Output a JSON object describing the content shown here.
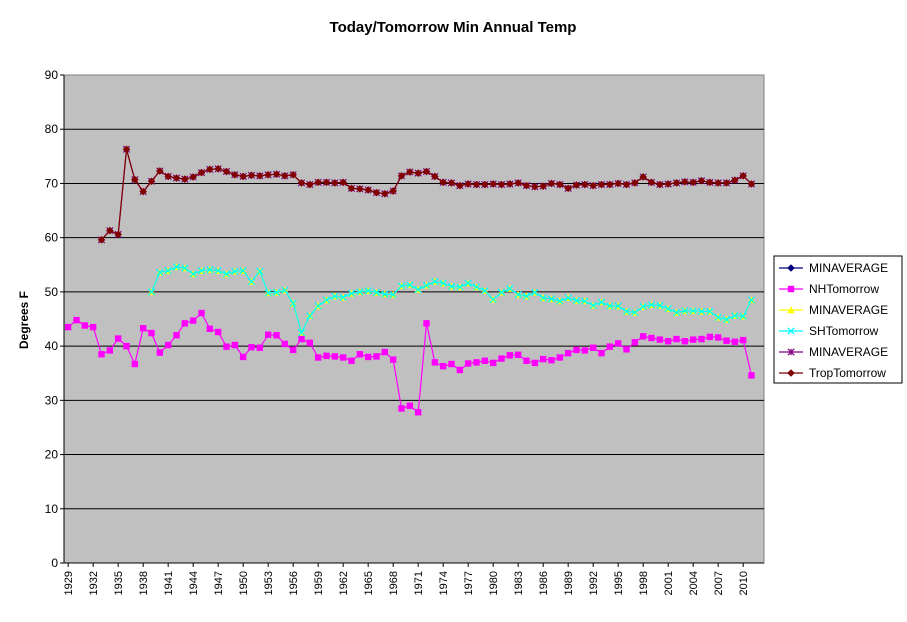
{
  "chart_data": {
    "type": "line",
    "title": "Today/Tomorrow Min Annual Temp",
    "xlabel": "",
    "ylabel": "Degrees F",
    "ylim": [
      0,
      90
    ],
    "y_ticks": [
      0,
      10,
      20,
      30,
      40,
      50,
      60,
      70,
      80,
      90
    ],
    "x_range": [
      1929,
      2012
    ],
    "x_tick_labels": [
      1929,
      1932,
      1935,
      1938,
      1941,
      1944,
      1947,
      1950,
      1953,
      1956,
      1959,
      1962,
      1965,
      1968,
      1971,
      1974,
      1977,
      1980,
      1983,
      1986,
      1989,
      1992,
      1995,
      1998,
      2001,
      2004,
      2007,
      2010
    ],
    "grid": "horizontal",
    "legend_position": "right",
    "plot_background": "#c0c0c0",
    "series": [
      {
        "name": "MINAVERAGE",
        "color": "#000080",
        "marker": "diamond",
        "x": [],
        "values": []
      },
      {
        "name": "NHTomorrow",
        "color": "#ff00ff",
        "marker": "square",
        "x": [
          1929,
          1930,
          1931,
          1932,
          1933,
          1934,
          1935,
          1936,
          1937,
          1938,
          1939,
          1940,
          1941,
          1942,
          1943,
          1944,
          1945,
          1946,
          1947,
          1948,
          1949,
          1950,
          1951,
          1952,
          1953,
          1954,
          1955,
          1956,
          1957,
          1958,
          1959,
          1960,
          1961,
          1962,
          1963,
          1964,
          1965,
          1966,
          1967,
          1968,
          1969,
          1970,
          1971,
          1972,
          1973,
          1974,
          1975,
          1976,
          1977,
          1978,
          1979,
          1980,
          1981,
          1982,
          1983,
          1984,
          1985,
          1986,
          1987,
          1988,
          1989,
          1990,
          1991,
          1992,
          1993,
          1994,
          1995,
          1996,
          1997,
          1998,
          1999,
          2000,
          2001,
          2002,
          2003,
          2004,
          2005,
          2006,
          2007,
          2008,
          2009,
          2010,
          2011
        ],
        "values": [
          43.5,
          44.8,
          43.8,
          43.5,
          38.5,
          39.2,
          41.4,
          40.0,
          36.7,
          43.3,
          42.4,
          38.8,
          40.2,
          42.0,
          44.2,
          44.7,
          46.1,
          43.2,
          42.6,
          39.9,
          40.2,
          38.0,
          39.8,
          39.7,
          42.1,
          42.0,
          40.4,
          39.3,
          41.3,
          40.6,
          37.9,
          38.2,
          38.1,
          37.9,
          37.3,
          38.5,
          38.0,
          38.1,
          38.9,
          37.5,
          28.5,
          29.0,
          27.8,
          44.2,
          37.0,
          36.3,
          36.7,
          35.6,
          36.8,
          37.0,
          37.3,
          36.9,
          37.7,
          38.3,
          38.4,
          37.3,
          36.9,
          37.6,
          37.4,
          37.9,
          38.7,
          39.3,
          39.2,
          39.7,
          38.7,
          39.9,
          40.5,
          39.4,
          40.7,
          41.8,
          41.5,
          41.2,
          40.9,
          41.3,
          40.9,
          41.2,
          41.3,
          41.7,
          41.6,
          41.0,
          40.8,
          41.1,
          34.6
        ]
      },
      {
        "name": "MINAVERAGE",
        "color": "#ffff00",
        "marker": "triangle",
        "x": [
          1939,
          1940,
          1941,
          1942,
          1943,
          1944,
          1945,
          1946,
          1947,
          1948,
          1949,
          1950,
          1951,
          1952,
          1953,
          1954,
          1955,
          1956,
          1957,
          1958,
          1959,
          1960,
          1961,
          1962,
          1963,
          1964,
          1965,
          1966,
          1967,
          1968,
          1969,
          1970,
          1971,
          1972,
          1973,
          1974,
          1975,
          1976,
          1977,
          1978,
          1979,
          1980,
          1981,
          1982,
          1983,
          1984,
          1985,
          1986,
          1987,
          1988,
          1989,
          1990,
          1991,
          1992,
          1993,
          1994,
          1995,
          1996,
          1997,
          1998,
          1999,
          2000,
          2001,
          2002,
          2003,
          2004,
          2005,
          2006,
          2007,
          2008,
          2009,
          2010,
          2011
        ],
        "values": [
          50.0,
          53.6,
          53.9,
          54.6,
          54.4,
          53.3,
          53.9,
          54.1,
          53.9,
          53.3,
          53.8,
          53.9,
          51.9,
          53.8,
          49.8,
          49.9,
          50.3,
          47.9,
          42.5,
          45.6,
          47.4,
          48.5,
          49.2,
          49.0,
          49.7,
          50.0,
          50.2,
          49.9,
          49.6,
          49.5,
          51.1,
          51.3,
          50.4,
          51.2,
          51.9,
          51.6,
          51.0,
          50.9,
          51.6,
          50.9,
          50.2,
          48.6,
          49.9,
          50.6,
          49.5,
          49.2,
          49.9,
          48.9,
          48.7,
          48.3,
          48.9,
          48.4,
          48.3,
          47.5,
          48.1,
          47.4,
          47.4,
          46.4,
          46.2,
          47.3,
          47.6,
          47.5,
          46.9,
          46.2,
          46.5,
          46.5,
          46.4,
          46.4,
          45.3,
          44.9,
          45.6,
          45.5,
          48.5
        ]
      },
      {
        "name": "SHTomorrow",
        "color": "#00ffff",
        "marker": "x",
        "x": [
          1939,
          1940,
          1941,
          1942,
          1943,
          1944,
          1945,
          1946,
          1947,
          1948,
          1949,
          1950,
          1951,
          1952,
          1953,
          1954,
          1955,
          1956,
          1957,
          1958,
          1959,
          1960,
          1961,
          1962,
          1963,
          1964,
          1965,
          1966,
          1967,
          1968,
          1969,
          1970,
          1971,
          1972,
          1973,
          1974,
          1975,
          1976,
          1977,
          1978,
          1979,
          1980,
          1981,
          1982,
          1983,
          1984,
          1985,
          1986,
          1987,
          1988,
          1989,
          1990,
          1991,
          1992,
          1993,
          1994,
          1995,
          1996,
          1997,
          1998,
          1999,
          2000,
          2001,
          2002,
          2003,
          2004,
          2005,
          2006,
          2007,
          2008,
          2009,
          2010,
          2011
        ],
        "values": [
          50.0,
          53.6,
          53.9,
          54.6,
          54.4,
          53.3,
          53.9,
          54.1,
          53.9,
          53.3,
          53.8,
          53.9,
          51.9,
          53.8,
          49.8,
          49.9,
          50.3,
          47.9,
          42.5,
          45.6,
          47.4,
          48.5,
          49.2,
          49.0,
          49.7,
          50.0,
          50.2,
          49.9,
          49.6,
          49.5,
          51.1,
          51.3,
          50.4,
          51.2,
          51.9,
          51.6,
          51.0,
          50.9,
          51.6,
          50.9,
          50.2,
          48.6,
          49.9,
          50.6,
          49.5,
          49.2,
          49.9,
          48.9,
          48.7,
          48.3,
          48.9,
          48.4,
          48.3,
          47.5,
          48.1,
          47.4,
          47.4,
          46.4,
          46.2,
          47.3,
          47.6,
          47.5,
          46.9,
          46.2,
          46.5,
          46.5,
          46.4,
          46.4,
          45.3,
          44.9,
          45.6,
          45.5,
          48.5
        ]
      },
      {
        "name": "MINAVERAGE",
        "color": "#800080",
        "marker": "star",
        "x": [
          1933,
          1934,
          1935,
          1936,
          1937,
          1938,
          1939,
          1940,
          1941,
          1942,
          1943,
          1944,
          1945,
          1946,
          1947,
          1948,
          1949,
          1950,
          1951,
          1952,
          1953,
          1954,
          1955,
          1956,
          1957,
          1958,
          1959,
          1960,
          1961,
          1962,
          1963,
          1964,
          1965,
          1966,
          1967,
          1968,
          1969,
          1970,
          1971,
          1972,
          1973,
          1974,
          1975,
          1976,
          1977,
          1978,
          1979,
          1980,
          1981,
          1982,
          1983,
          1984,
          1985,
          1986,
          1987,
          1988,
          1989,
          1990,
          1991,
          1992,
          1993,
          1994,
          1995,
          1996,
          1997,
          1998,
          1999,
          2000,
          2001,
          2002,
          2003,
          2004,
          2005,
          2006,
          2007,
          2008,
          2009,
          2010,
          2011
        ],
        "values": [
          59.6,
          61.3,
          60.6,
          76.3,
          70.7,
          68.5,
          70.4,
          72.3,
          71.3,
          71.0,
          70.8,
          71.2,
          72.0,
          72.6,
          72.7,
          72.2,
          71.6,
          71.3,
          71.5,
          71.4,
          71.6,
          71.7,
          71.4,
          71.6,
          70.1,
          69.8,
          70.2,
          70.2,
          70.1,
          70.2,
          69.1,
          69.0,
          68.8,
          68.3,
          68.1,
          68.6,
          71.4,
          72.1,
          71.9,
          72.2,
          71.3,
          70.2,
          70.1,
          69.6,
          69.9,
          69.8,
          69.8,
          69.9,
          69.8,
          69.9,
          70.1,
          69.6,
          69.4,
          69.5,
          70.0,
          69.8,
          69.1,
          69.7,
          69.8,
          69.6,
          69.8,
          69.8,
          70.0,
          69.8,
          70.1,
          71.2,
          70.2,
          69.8,
          69.9,
          70.1,
          70.3,
          70.2,
          70.5,
          70.2,
          70.1,
          70.1,
          70.6,
          71.4,
          69.9
        ]
      },
      {
        "name": "TropTomorrow",
        "color": "#800000",
        "marker": "diamond",
        "x": [
          1933,
          1934,
          1935,
          1936,
          1937,
          1938,
          1939,
          1940,
          1941,
          1942,
          1943,
          1944,
          1945,
          1946,
          1947,
          1948,
          1949,
          1950,
          1951,
          1952,
          1953,
          1954,
          1955,
          1956,
          1957,
          1958,
          1959,
          1960,
          1961,
          1962,
          1963,
          1964,
          1965,
          1966,
          1967,
          1968,
          1969,
          1970,
          1971,
          1972,
          1973,
          1974,
          1975,
          1976,
          1977,
          1978,
          1979,
          1980,
          1981,
          1982,
          1983,
          1984,
          1985,
          1986,
          1987,
          1988,
          1989,
          1990,
          1991,
          1992,
          1993,
          1994,
          1995,
          1996,
          1997,
          1998,
          1999,
          2000,
          2001,
          2002,
          2003,
          2004,
          2005,
          2006,
          2007,
          2008,
          2009,
          2010,
          2011
        ],
        "values": [
          59.6,
          61.3,
          60.6,
          76.3,
          70.7,
          68.5,
          70.4,
          72.3,
          71.3,
          71.0,
          70.8,
          71.2,
          72.0,
          72.6,
          72.7,
          72.2,
          71.6,
          71.3,
          71.5,
          71.4,
          71.6,
          71.7,
          71.4,
          71.6,
          70.1,
          69.8,
          70.2,
          70.2,
          70.1,
          70.2,
          69.1,
          69.0,
          68.8,
          68.3,
          68.1,
          68.6,
          71.4,
          72.1,
          71.9,
          72.2,
          71.3,
          70.2,
          70.1,
          69.6,
          69.9,
          69.8,
          69.8,
          69.9,
          69.8,
          69.9,
          70.1,
          69.6,
          69.4,
          69.5,
          70.0,
          69.8,
          69.1,
          69.7,
          69.8,
          69.6,
          69.8,
          69.8,
          70.0,
          69.8,
          70.1,
          71.2,
          70.2,
          69.8,
          69.9,
          70.1,
          70.3,
          70.2,
          70.5,
          70.2,
          70.1,
          70.1,
          70.6,
          71.4,
          69.9
        ]
      }
    ]
  }
}
